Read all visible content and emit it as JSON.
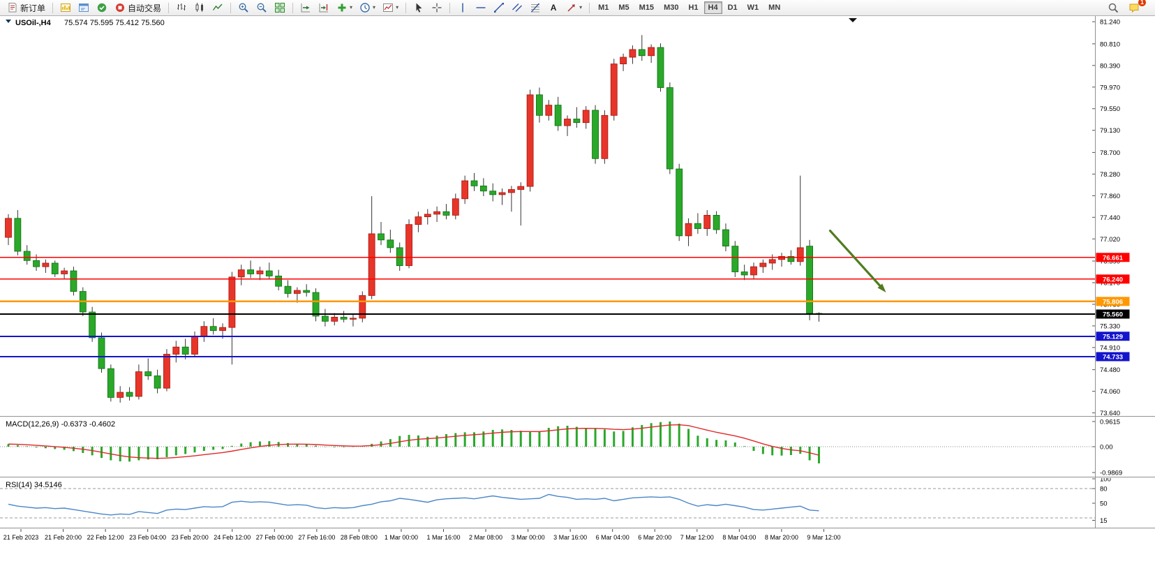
{
  "toolbar": {
    "new_order_label": "新订单",
    "auto_trading_label": "自动交易",
    "text_tool_label": "A",
    "dropdown_caret": "▾",
    "timeframes": [
      "M1",
      "M5",
      "M15",
      "M30",
      "H1",
      "H4",
      "D1",
      "W1",
      "MN"
    ],
    "active_timeframe": "H4",
    "notification_badge": "1"
  },
  "chart": {
    "symbol_period": "USOil-,H4",
    "ohlc_text": "75.574 75.595 75.412 75.560"
  },
  "colors": {
    "bull": "#e8352a",
    "bull_border": "#a3150d",
    "bear": "#2aa82a",
    "bear_border": "#0d6e0d",
    "wick": "#333333",
    "line_red": "#ff0000",
    "line_orange": "#ff9800",
    "line_black": "#000000",
    "line_blue": "#1414cc",
    "macd_hist": "#2aa82a",
    "macd_signal": "#e02828",
    "rsi_line": "#4a86c8",
    "arrow": "#507c1f",
    "axis_text": "#000000",
    "chart_bg": "#ffffff"
  },
  "chart_data": {
    "type": "candlestick",
    "symbol": "USOil",
    "timeframe": "H4",
    "open": 75.574,
    "high": 75.595,
    "low": 75.412,
    "close": 75.56,
    "price_range": {
      "min": 73.58,
      "max": 81.35
    },
    "price_ticks": [
      "81.240",
      "80.810",
      "80.390",
      "79.970",
      "79.550",
      "79.130",
      "78.700",
      "78.280",
      "77.860",
      "77.440",
      "77.020",
      "76.590",
      "76.170",
      "75.750",
      "75.330",
      "74.910",
      "74.480",
      "74.060",
      "73.640"
    ],
    "time_labels": [
      "21 Feb 2023",
      "21 Feb 20:00",
      "22 Feb 12:00",
      "23 Feb 04:00",
      "23 Feb 20:00",
      "24 Feb 12:00",
      "27 Feb 00:00",
      "27 Feb 16:00",
      "28 Feb 08:00",
      "1 Mar 00:00",
      "1 Mar 16:00",
      "2 Mar 08:00",
      "3 Mar 00:00",
      "3 Mar 16:00",
      "6 Mar 04:00",
      "6 Mar 20:00",
      "7 Mar 12:00",
      "8 Mar 04:00",
      "8 Mar 20:00",
      "9 Mar 12:00"
    ],
    "candles": [
      [
        77.05,
        77.5,
        76.9,
        77.42
      ],
      [
        77.42,
        77.58,
        76.7,
        76.78
      ],
      [
        76.78,
        76.9,
        76.52,
        76.6
      ],
      [
        76.6,
        76.72,
        76.4,
        76.48
      ],
      [
        76.48,
        76.62,
        76.36,
        76.55
      ],
      [
        76.55,
        76.6,
        76.28,
        76.34
      ],
      [
        76.34,
        76.46,
        76.25,
        76.4
      ],
      [
        76.4,
        76.48,
        75.92,
        76.0
      ],
      [
        76.0,
        76.08,
        75.52,
        75.6
      ],
      [
        75.6,
        75.7,
        75.02,
        75.1
      ],
      [
        75.1,
        75.2,
        74.42,
        74.5
      ],
      [
        74.5,
        74.58,
        73.86,
        73.94
      ],
      [
        73.94,
        74.16,
        73.84,
        74.04
      ],
      [
        74.04,
        74.14,
        73.88,
        73.96
      ],
      [
        73.96,
        74.58,
        73.9,
        74.44
      ],
      [
        74.44,
        74.7,
        74.28,
        74.36
      ],
      [
        74.36,
        74.48,
        74.02,
        74.12
      ],
      [
        74.12,
        74.88,
        74.06,
        74.78
      ],
      [
        74.78,
        75.04,
        74.62,
        74.92
      ],
      [
        74.92,
        75.08,
        74.68,
        74.78
      ],
      [
        74.78,
        75.22,
        74.72,
        75.12
      ],
      [
        75.12,
        75.42,
        75.02,
        75.32
      ],
      [
        75.32,
        75.48,
        75.16,
        75.24
      ],
      [
        75.24,
        75.38,
        75.08,
        75.3
      ],
      [
        75.3,
        76.38,
        74.58,
        76.28
      ],
      [
        76.28,
        76.52,
        76.12,
        76.42
      ],
      [
        76.42,
        76.6,
        76.26,
        76.34
      ],
      [
        76.34,
        76.48,
        76.22,
        76.4
      ],
      [
        76.4,
        76.56,
        76.24,
        76.3
      ],
      [
        76.3,
        76.42,
        76.02,
        76.1
      ],
      [
        76.1,
        76.22,
        75.88,
        75.96
      ],
      [
        75.96,
        76.08,
        75.78,
        76.02
      ],
      [
        76.02,
        76.14,
        75.9,
        75.98
      ],
      [
        75.98,
        76.06,
        75.42,
        75.52
      ],
      [
        75.52,
        75.66,
        75.32,
        75.42
      ],
      [
        75.42,
        75.58,
        75.34,
        75.5
      ],
      [
        75.5,
        75.62,
        75.4,
        75.46
      ],
      [
        75.46,
        75.56,
        75.32,
        75.48
      ],
      [
        75.48,
        76.0,
        75.4,
        75.92
      ],
      [
        75.92,
        77.85,
        75.85,
        77.12
      ],
      [
        77.12,
        77.35,
        76.9,
        77.0
      ],
      [
        77.0,
        77.2,
        76.75,
        76.85
      ],
      [
        76.85,
        76.95,
        76.4,
        76.5
      ],
      [
        76.5,
        77.4,
        76.45,
        77.3
      ],
      [
        77.3,
        77.55,
        77.15,
        77.45
      ],
      [
        77.45,
        77.6,
        77.3,
        77.5
      ],
      [
        77.5,
        77.65,
        77.35,
        77.55
      ],
      [
        77.55,
        77.7,
        77.4,
        77.48
      ],
      [
        77.48,
        77.9,
        77.4,
        77.8
      ],
      [
        77.8,
        78.25,
        77.7,
        78.15
      ],
      [
        78.15,
        78.3,
        77.95,
        78.05
      ],
      [
        78.05,
        78.2,
        77.85,
        77.95
      ],
      [
        77.95,
        78.1,
        77.75,
        77.88
      ],
      [
        77.88,
        78.0,
        77.68,
        77.92
      ],
      [
        77.92,
        78.05,
        77.55,
        77.98
      ],
      [
        77.98,
        78.12,
        77.28,
        78.04
      ],
      [
        78.04,
        79.92,
        77.94,
        79.82
      ],
      [
        79.82,
        79.96,
        79.28,
        79.42
      ],
      [
        79.42,
        79.72,
        79.32,
        79.62
      ],
      [
        79.62,
        79.78,
        79.12,
        79.22
      ],
      [
        79.22,
        79.42,
        79.02,
        79.35
      ],
      [
        79.35,
        79.58,
        79.18,
        79.28
      ],
      [
        79.28,
        79.6,
        79.16,
        79.52
      ],
      [
        79.52,
        79.62,
        78.48,
        78.58
      ],
      [
        78.58,
        79.52,
        78.48,
        79.42
      ],
      [
        79.42,
        80.52,
        79.32,
        80.42
      ],
      [
        80.42,
        80.62,
        80.28,
        80.55
      ],
      [
        80.55,
        80.78,
        80.42,
        80.7
      ],
      [
        80.7,
        80.98,
        80.48,
        80.58
      ],
      [
        80.58,
        80.8,
        80.44,
        80.74
      ],
      [
        80.74,
        80.82,
        79.88,
        79.96
      ],
      [
        79.96,
        80.06,
        78.28,
        78.38
      ],
      [
        78.38,
        78.48,
        76.98,
        77.08
      ],
      [
        77.08,
        77.42,
        76.88,
        77.32
      ],
      [
        77.32,
        77.52,
        77.12,
        77.22
      ],
      [
        77.22,
        77.58,
        77.08,
        77.48
      ],
      [
        77.48,
        77.56,
        77.12,
        77.2
      ],
      [
        77.2,
        77.32,
        76.78,
        76.88
      ],
      [
        76.88,
        76.98,
        76.28,
        76.38
      ],
      [
        76.38,
        76.52,
        76.22,
        76.32
      ],
      [
        76.32,
        76.56,
        76.24,
        76.48
      ],
      [
        76.48,
        76.62,
        76.36,
        76.55
      ],
      [
        76.55,
        76.72,
        76.42,
        76.62
      ],
      [
        76.62,
        76.75,
        76.48,
        76.68
      ],
      [
        76.68,
        76.8,
        76.52,
        76.58
      ],
      [
        76.58,
        78.25,
        76.5,
        76.85
      ],
      [
        76.88,
        77.0,
        75.44,
        75.574
      ],
      [
        75.574,
        75.595,
        75.412,
        75.56
      ]
    ],
    "hlines": [
      {
        "label": "76.661",
        "price": 76.661,
        "color": "#ff0000",
        "width": 1.3
      },
      {
        "label": "76.240",
        "price": 76.24,
        "color": "#ff0000",
        "width": 1.3
      },
      {
        "label": "75.806",
        "price": 75.806,
        "color": "#ff9800",
        "width": 2.4
      },
      {
        "label": "75.560",
        "price": 75.56,
        "color": "#000000",
        "width": 1.8
      },
      {
        "label": "75.129",
        "price": 75.129,
        "color": "#1414cc",
        "width": 2
      },
      {
        "label": "74.733",
        "price": 74.733,
        "color": "#1414cc",
        "width": 2
      }
    ],
    "trend_arrow": {
      "from_bar": 88.2,
      "from_price": 77.18,
      "to_bar": 94.2,
      "to_price": 75.98
    },
    "macd": {
      "label": "MACD(12,26,9) -0.6373 -0.4602",
      "last_value": -0.6373,
      "last_signal": -0.4602,
      "scale_labels": [
        "0.9615",
        "0.00",
        "-0.9869"
      ],
      "scale_max": 0.9615,
      "scale_min": -0.9869,
      "values": [
        0.1,
        0.06,
        0.02,
        -0.03,
        -0.06,
        -0.09,
        -0.12,
        -0.17,
        -0.24,
        -0.33,
        -0.43,
        -0.52,
        -0.56,
        -0.57,
        -0.52,
        -0.49,
        -0.48,
        -0.4,
        -0.33,
        -0.28,
        -0.22,
        -0.16,
        -0.12,
        -0.09,
        0.03,
        0.12,
        0.17,
        0.2,
        0.21,
        0.18,
        0.14,
        0.11,
        0.09,
        0.04,
        -0.01,
        -0.02,
        -0.02,
        -0.01,
        0.04,
        0.11,
        0.2,
        0.29,
        0.41,
        0.45,
        0.43,
        0.38,
        0.42,
        0.48,
        0.52,
        0.55,
        0.55,
        0.58,
        0.64,
        0.66,
        0.64,
        0.61,
        0.58,
        0.57,
        0.72,
        0.78,
        0.8,
        0.76,
        0.72,
        0.68,
        0.66,
        0.58,
        0.6,
        0.74,
        0.83,
        0.9,
        0.94,
        0.9615,
        0.88,
        0.68,
        0.42,
        0.32,
        0.26,
        0.24,
        0.16,
        0.02,
        -0.16,
        -0.28,
        -0.33,
        -0.34,
        -0.32,
        -0.27,
        -0.52,
        -0.6373
      ]
    },
    "rsi": {
      "label": "RSI(14) 34.5146",
      "last_value": 34.5146,
      "scale_labels": [
        "100",
        "80",
        "50",
        "15"
      ],
      "levels": [
        80,
        20
      ],
      "values": [
        48,
        44,
        42,
        40,
        41,
        39,
        40,
        37,
        34,
        31,
        28,
        26,
        28,
        27,
        33,
        31,
        29,
        36,
        38,
        37,
        40,
        43,
        42,
        43,
        52,
        54,
        52,
        53,
        52,
        49,
        46,
        47,
        46,
        41,
        39,
        41,
        40,
        41,
        45,
        48,
        53,
        55,
        60,
        58,
        55,
        52,
        57,
        59,
        60,
        61,
        59,
        62,
        65,
        62,
        60,
        58,
        59,
        60,
        68,
        64,
        62,
        58,
        59,
        58,
        60,
        55,
        58,
        61,
        62,
        63,
        62,
        63,
        58,
        50,
        44,
        47,
        45,
        48,
        45,
        42,
        37,
        36,
        38,
        40,
        42,
        44,
        36,
        34.5
      ]
    }
  }
}
